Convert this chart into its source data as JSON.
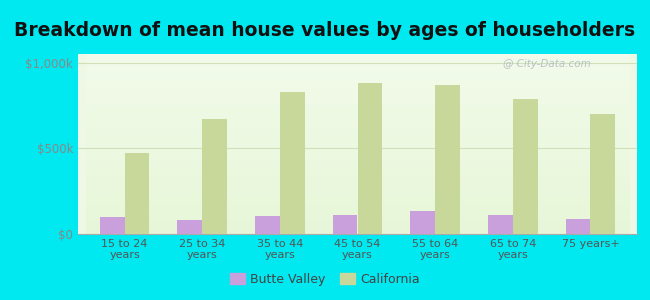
{
  "title": "Breakdown of mean house values by ages of householders",
  "categories": [
    "15 to 24\nyears",
    "25 to 34\nyears",
    "35 to 44\nyears",
    "45 to 54\nyears",
    "55 to 64\nyears",
    "65 to 74\nyears",
    "75 years+"
  ],
  "butte_valley": [
    100000,
    80000,
    105000,
    112000,
    132000,
    110000,
    90000
  ],
  "california": [
    470000,
    670000,
    830000,
    880000,
    870000,
    790000,
    700000
  ],
  "butte_color": "#c9a0dc",
  "california_color": "#c8d89a",
  "background_outer": "#00e8f0",
  "background_plot_top": "#e8f5e0",
  "background_plot_bottom": "#f5ffe8",
  "grid_color": "#d0e0b8",
  "ylim": [
    0,
    1050000
  ],
  "yticks": [
    0,
    500000,
    1000000
  ],
  "ytick_labels": [
    "$0",
    "$500k",
    "$1,000k"
  ],
  "title_fontsize": 13.5,
  "legend_labels": [
    "Butte Valley",
    "California"
  ],
  "bar_width": 0.32,
  "watermark": "@ City-Data.com"
}
